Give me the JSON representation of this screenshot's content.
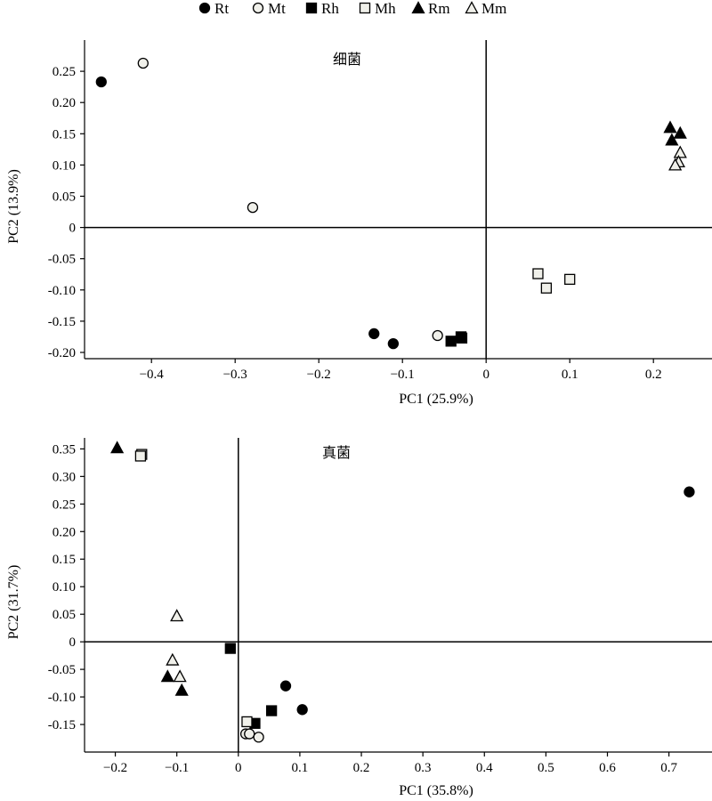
{
  "legend": {
    "items": [
      {
        "key": "Rt",
        "label": "Rt",
        "shape": "circle",
        "filled": true
      },
      {
        "key": "Mt",
        "label": "Mt",
        "shape": "circle",
        "filled": false
      },
      {
        "key": "Rh",
        "label": "Rh",
        "shape": "square",
        "filled": true
      },
      {
        "key": "Mh",
        "label": "Mh",
        "shape": "square",
        "filled": false
      },
      {
        "key": "Rm",
        "label": "Rm",
        "shape": "triangle",
        "filled": true
      },
      {
        "key": "Mm",
        "label": "Mm",
        "shape": "triangle",
        "filled": false
      }
    ],
    "placement": "top"
  },
  "colors": {
    "filled": "#000000",
    "open": "#f0f0ea",
    "stroke": "#000000"
  },
  "chart_data": [
    {
      "type": "scatter",
      "title": "细菌",
      "xlabel": "PC1 (25.9%)",
      "ylabel": "PC2 (13.9%)",
      "xlim": [
        -0.48,
        0.27
      ],
      "ylim": [
        -0.21,
        0.3
      ],
      "xticks": [
        -0.4,
        -0.3,
        -0.2,
        -0.1,
        0,
        0.1,
        0.2
      ],
      "xtick_labels": [
        "−0.4",
        "−0.3",
        "−0.2",
        "−0.1",
        "0",
        "0.1",
        "0.2"
      ],
      "yticks": [
        0.25,
        0.2,
        0.15,
        0.1,
        0.05,
        0,
        -0.05,
        -0.1,
        -0.15,
        -0.2
      ],
      "ytick_labels": [
        "0.25",
        "0.20",
        "0.15",
        "0.10",
        "0.05",
        "0",
        "-0.05",
        "-0.10",
        "-0.15",
        "-0.20"
      ],
      "grid": false,
      "series": [
        {
          "name": "Rt",
          "points": [
            [
              -0.46,
              0.233
            ],
            [
              -0.134,
              -0.17
            ],
            [
              -0.111,
              -0.186
            ]
          ]
        },
        {
          "name": "Mt",
          "points": [
            [
              -0.41,
              0.263
            ],
            [
              -0.279,
              0.032
            ],
            [
              -0.058,
              -0.173
            ]
          ]
        },
        {
          "name": "Rh",
          "points": [
            [
              -0.042,
              -0.182
            ],
            [
              -0.029,
              -0.177
            ],
            [
              -0.03,
              -0.175
            ]
          ]
        },
        {
          "name": "Mh",
          "points": [
            [
              0.062,
              -0.074
            ],
            [
              0.072,
              -0.097
            ],
            [
              0.1,
              -0.083
            ]
          ]
        },
        {
          "name": "Rm",
          "points": [
            [
              0.22,
              0.16
            ],
            [
              0.222,
              0.14
            ],
            [
              0.232,
              0.151
            ]
          ]
        },
        {
          "name": "Mm",
          "points": [
            [
              0.232,
              0.12
            ],
            [
              0.23,
              0.105
            ],
            [
              0.226,
              0.1
            ]
          ]
        }
      ]
    },
    {
      "type": "scatter",
      "title": "真菌",
      "xlabel": "PC1 (35.8%)",
      "ylabel": "PC2 (31.7%)",
      "xlim": [
        -0.25,
        0.77
      ],
      "ylim": [
        -0.2,
        0.37
      ],
      "xticks": [
        -0.2,
        -0.1,
        0,
        0.1,
        0.2,
        0.3,
        0.4,
        0.5,
        0.6,
        0.7
      ],
      "xtick_labels": [
        "−0.2",
        "−0.1",
        "0",
        "0.1",
        "0.2",
        "0.3",
        "0.4",
        "0.5",
        "0.6",
        "0.7"
      ],
      "yticks": [
        0.35,
        0.3,
        0.25,
        0.2,
        0.15,
        0.1,
        0.05,
        0,
        -0.05,
        -0.1,
        -0.15
      ],
      "ytick_labels": [
        "0.35",
        "0.30",
        "0.25",
        "0.20",
        "0.15",
        "0.10",
        "0.05",
        "0",
        "-0.05",
        "-0.10",
        "-0.15"
      ],
      "grid": false,
      "series": [
        {
          "name": "Rt",
          "points": [
            [
              0.733,
              0.272
            ],
            [
              0.077,
              -0.08
            ],
            [
              0.104,
              -0.123
            ]
          ]
        },
        {
          "name": "Mt",
          "points": [
            [
              0.012,
              -0.167
            ],
            [
              0.018,
              -0.167
            ],
            [
              0.033,
              -0.173
            ]
          ]
        },
        {
          "name": "Rh",
          "points": [
            [
              -0.013,
              -0.012
            ],
            [
              0.054,
              -0.125
            ],
            [
              0.027,
              -0.148
            ]
          ]
        },
        {
          "name": "Mh",
          "points": [
            [
              -0.157,
              0.34
            ],
            [
              -0.159,
              0.337
            ],
            [
              0.014,
              -0.145
            ]
          ]
        },
        {
          "name": "Rm",
          "points": [
            [
              -0.197,
              0.352
            ],
            [
              -0.115,
              -0.063
            ],
            [
              -0.092,
              -0.088
            ]
          ]
        },
        {
          "name": "Mm",
          "points": [
            [
              -0.1,
              0.047
            ],
            [
              -0.107,
              -0.033
            ],
            [
              -0.095,
              -0.063
            ]
          ]
        }
      ]
    }
  ]
}
